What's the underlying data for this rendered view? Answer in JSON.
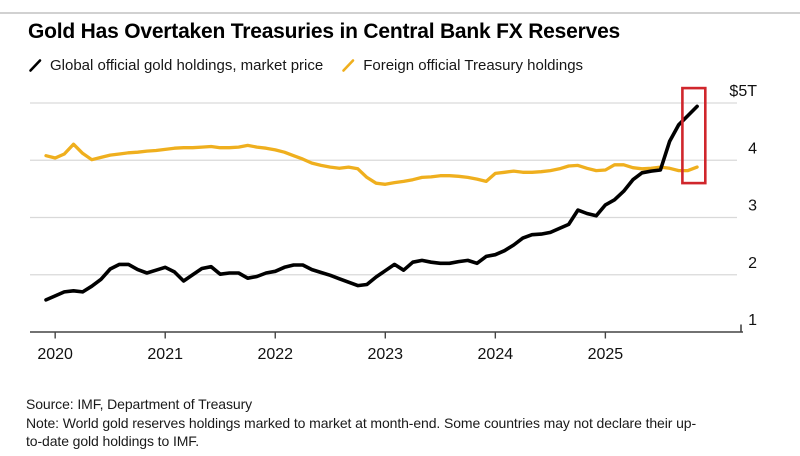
{
  "header": {
    "title": "Gold Has Overtaken Treasuries in Central Bank FX Reserves"
  },
  "legend": {
    "items": [
      {
        "label": "Global official gold holdings, market price",
        "color": "#000000"
      },
      {
        "label": "Foreign official Treasury holdings",
        "color": "#EFAF1E"
      }
    ]
  },
  "chart_data": {
    "type": "line",
    "title": "Gold Has Overtaken Treasuries in Central Bank FX Reserves",
    "unit": "trillion USD",
    "frequency": "monthly",
    "x_start": "2019-12",
    "x_end": "2025-11",
    "x_tick_labels": [
      "2020",
      "2021",
      "2022",
      "2023",
      "2024",
      "2025"
    ],
    "y_ticks": [
      5,
      4,
      3,
      2,
      1
    ],
    "y_tick_labels": [
      "$5T",
      "4",
      "3",
      "2",
      "1"
    ],
    "ylim": [
      1,
      5.4
    ],
    "grid": "horizontal",
    "legend_position": "top",
    "series": [
      {
        "name": "Global official gold holdings, market price",
        "color": "#000000",
        "values": [
          1.56,
          1.63,
          1.7,
          1.72,
          1.7,
          1.8,
          1.92,
          2.1,
          2.18,
          2.18,
          2.09,
          2.03,
          2.08,
          2.13,
          2.05,
          1.89,
          2.0,
          2.11,
          2.14,
          2.01,
          2.03,
          2.03,
          1.94,
          1.97,
          2.03,
          2.06,
          2.13,
          2.17,
          2.17,
          2.09,
          2.04,
          1.99,
          1.93,
          1.87,
          1.81,
          1.83,
          1.96,
          2.07,
          2.18,
          2.08,
          2.22,
          2.25,
          2.22,
          2.2,
          2.2,
          2.23,
          2.25,
          2.2,
          2.32,
          2.35,
          2.42,
          2.52,
          2.64,
          2.7,
          2.71,
          2.74,
          2.81,
          2.88,
          3.13,
          3.07,
          3.03,
          3.22,
          3.31,
          3.46,
          3.66,
          3.78,
          3.81,
          3.83,
          4.33,
          4.62,
          4.78,
          4.94
        ]
      },
      {
        "name": "Foreign official Treasury holdings",
        "color": "#EFAF1E",
        "values": [
          4.08,
          4.04,
          4.11,
          4.28,
          4.12,
          4.01,
          4.05,
          4.09,
          4.11,
          4.13,
          4.14,
          4.16,
          4.17,
          4.19,
          4.21,
          4.22,
          4.22,
          4.23,
          4.24,
          4.22,
          4.22,
          4.23,
          4.26,
          4.23,
          4.21,
          4.18,
          4.14,
          4.08,
          4.02,
          3.95,
          3.91,
          3.88,
          3.86,
          3.88,
          3.85,
          3.7,
          3.6,
          3.58,
          3.61,
          3.63,
          3.66,
          3.7,
          3.71,
          3.73,
          3.73,
          3.72,
          3.7,
          3.67,
          3.63,
          3.77,
          3.79,
          3.81,
          3.79,
          3.79,
          3.8,
          3.82,
          3.85,
          3.9,
          3.91,
          3.86,
          3.82,
          3.83,
          3.92,
          3.92,
          3.87,
          3.85,
          3.86,
          3.88,
          3.86,
          3.82,
          3.82,
          3.88
        ]
      }
    ],
    "annotation_box": {
      "color": "#D0262C",
      "month_index_range": [
        69.4,
        71.9
      ],
      "value_range": [
        3.6,
        5.26
      ]
    },
    "colors": {
      "gridline": "#D9D9D9",
      "axis": "#444444",
      "tick_label": "#111111"
    }
  },
  "footer": {
    "source": "Source: IMF, Department of Treasury",
    "note_line1": "Note: World gold reserves holdings marked to market at month-end. Some countries may not declare their up-",
    "note_line2": "to-date gold holdings to IMF."
  }
}
